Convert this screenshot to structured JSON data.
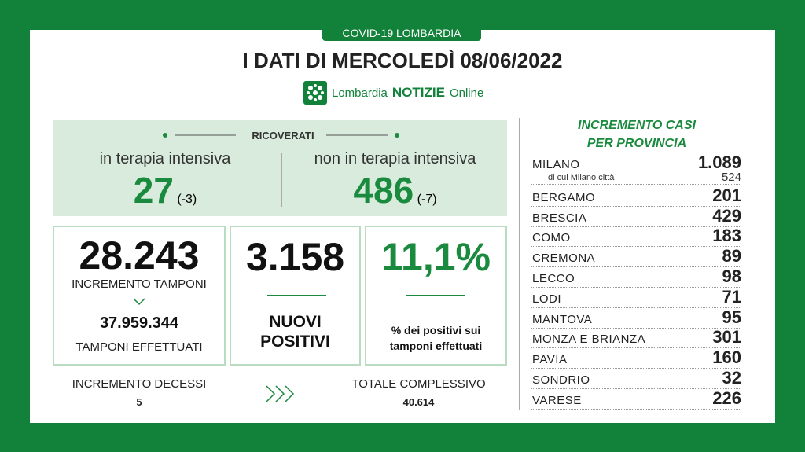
{
  "header": {
    "tag": "COVID-19 LOMBARDIA",
    "title": "I DATI DI MERCOLEDÌ 08/06/2022",
    "logo": {
      "brand": "Lombardia",
      "notizie": "NOTIZIE",
      "online": "Online"
    }
  },
  "ricoverati": {
    "title": "RICOVERATI",
    "intensiva": {
      "label": "in terapia intensiva",
      "value": "27",
      "delta": "(-3)"
    },
    "non_intensiva": {
      "label": "non in terapia intensiva",
      "value": "486",
      "delta": "(-7)"
    }
  },
  "tamponi": {
    "value": "28.243",
    "label": "INCREMENTO TAMPONI",
    "total": "37.959.344",
    "total_label": "TAMPONI EFFETTUATI"
  },
  "positivi": {
    "value": "3.158",
    "label": [
      "NUOVI",
      "POSITIVI"
    ]
  },
  "percentuale": {
    "value": "11,1%",
    "label": [
      "% dei positivi sui",
      "tamponi effettuati"
    ]
  },
  "decessi": {
    "label": "INCREMENTO DECESSI",
    "value": "5"
  },
  "totale": {
    "label": "TOTALE COMPLESSIVO",
    "value": "40.614"
  },
  "province": {
    "title": [
      "INCREMENTO CASI",
      "PER PROVINCIA"
    ],
    "rows": [
      {
        "name": "MILANO",
        "value": "1.089",
        "sub": {
          "label": "di cui Milano città",
          "value": "524"
        }
      },
      {
        "name": "BERGAMO",
        "value": "201"
      },
      {
        "name": "BRESCIA",
        "value": "429"
      },
      {
        "name": "COMO",
        "value": "183"
      },
      {
        "name": "CREMONA",
        "value": "89"
      },
      {
        "name": "LECCO",
        "value": "98"
      },
      {
        "name": "LODI",
        "value": "71"
      },
      {
        "name": "MANTOVA",
        "value": "95"
      },
      {
        "name": "MONZA E BRIANZA",
        "value": "301"
      },
      {
        "name": "PAVIA",
        "value": "160"
      },
      {
        "name": "SONDRIO",
        "value": "32"
      },
      {
        "name": "VARESE",
        "value": "226"
      }
    ]
  }
}
